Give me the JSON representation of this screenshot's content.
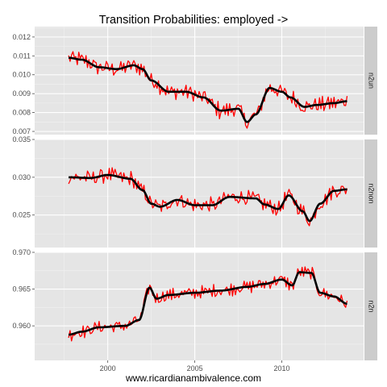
{
  "chart_data": {
    "type": "line",
    "title": "Transition Probabilities: employed ->",
    "caption": "www.ricardianambivalence.com",
    "xlabel": "",
    "ylabel": "",
    "xlim": [
      1995.8,
      2014.7
    ],
    "x_ticks": [
      2000,
      2005,
      2010
    ],
    "x_tick_labels": [
      "2000",
      "2005",
      "2010"
    ],
    "series_names": [
      "monthly (red)",
      "smoothed (black)"
    ],
    "colors": {
      "raw": "#ff0000",
      "smooth": "#000000",
      "panel": "#e5e5e5",
      "strip": "#cccccc"
    },
    "facets": [
      {
        "label": "n2un",
        "ylim": [
          0.00683,
          0.01255
        ],
        "y_ticks": [
          0.007,
          0.008,
          0.009,
          0.01,
          0.011,
          0.012
        ],
        "y_tick_labels": [
          "0.007",
          "0.008",
          "0.009",
          "0.010",
          "0.011",
          "0.012"
        ],
        "smooth": [
          [
            1997.75,
            0.0109
          ],
          [
            1998.5,
            0.0108
          ],
          [
            1999.5,
            0.0104
          ],
          [
            2000.5,
            0.0103
          ],
          [
            2001.5,
            0.0105
          ],
          [
            2002.0,
            0.0103
          ],
          [
            2002.5,
            0.0097
          ],
          [
            2003.5,
            0.0091
          ],
          [
            2004.5,
            0.0091
          ],
          [
            2005.5,
            0.0088
          ],
          [
            2006.5,
            0.0081
          ],
          [
            2007.5,
            0.0082
          ],
          [
            2008.0,
            0.0075
          ],
          [
            2008.5,
            0.0079
          ],
          [
            2009.3,
            0.0093
          ],
          [
            2010.0,
            0.0091
          ],
          [
            2010.5,
            0.0088
          ],
          [
            2011.3,
            0.0083
          ],
          [
            2012.0,
            0.0084
          ],
          [
            2013.0,
            0.0085
          ],
          [
            2013.75,
            0.0086
          ]
        ],
        "noise_amp": 0.00055
      },
      {
        "label": "n2non",
        "ylim": [
          0.0207,
          0.035
        ],
        "y_ticks": [
          0.025,
          0.03,
          0.035
        ],
        "y_tick_labels": [
          "0.025",
          "0.030",
          "0.035"
        ],
        "smooth": [
          [
            1997.75,
            0.03
          ],
          [
            1999.0,
            0.0299
          ],
          [
            2000.0,
            0.0303
          ],
          [
            2001.3,
            0.0298
          ],
          [
            2002.0,
            0.0283
          ],
          [
            2002.5,
            0.0265
          ],
          [
            2003.0,
            0.0261
          ],
          [
            2004.0,
            0.027
          ],
          [
            2005.0,
            0.0263
          ],
          [
            2006.0,
            0.0263
          ],
          [
            2007.0,
            0.0274
          ],
          [
            2008.5,
            0.0272
          ],
          [
            2009.0,
            0.0264
          ],
          [
            2009.8,
            0.0258
          ],
          [
            2010.4,
            0.0276
          ],
          [
            2011.2,
            0.0255
          ],
          [
            2011.6,
            0.0242
          ],
          [
            2012.2,
            0.0265
          ],
          [
            2013.0,
            0.0282
          ],
          [
            2013.75,
            0.0284
          ]
        ],
        "noise_amp": 0.0013
      },
      {
        "label": "n2n",
        "ylim": [
          0.9553,
          0.97
        ],
        "y_ticks": [
          0.96,
          0.965,
          0.97
        ],
        "y_tick_labels": [
          "0.960",
          "0.965",
          "0.970"
        ],
        "smooth": [
          [
            1997.75,
            0.9588
          ],
          [
            1998.5,
            0.9592
          ],
          [
            1999.5,
            0.9598
          ],
          [
            2001.0,
            0.96
          ],
          [
            2001.8,
            0.9608
          ],
          [
            2002.4,
            0.9652
          ],
          [
            2002.8,
            0.9637
          ],
          [
            2003.5,
            0.9642
          ],
          [
            2005.0,
            0.9645
          ],
          [
            2006.5,
            0.9648
          ],
          [
            2008.0,
            0.9653
          ],
          [
            2009.0,
            0.9657
          ],
          [
            2010.0,
            0.9663
          ],
          [
            2010.6,
            0.9655
          ],
          [
            2011.0,
            0.9673
          ],
          [
            2011.7,
            0.9672
          ],
          [
            2012.2,
            0.9645
          ],
          [
            2013.0,
            0.964
          ],
          [
            2013.75,
            0.963
          ]
        ],
        "noise_amp": 0.0011
      }
    ]
  }
}
